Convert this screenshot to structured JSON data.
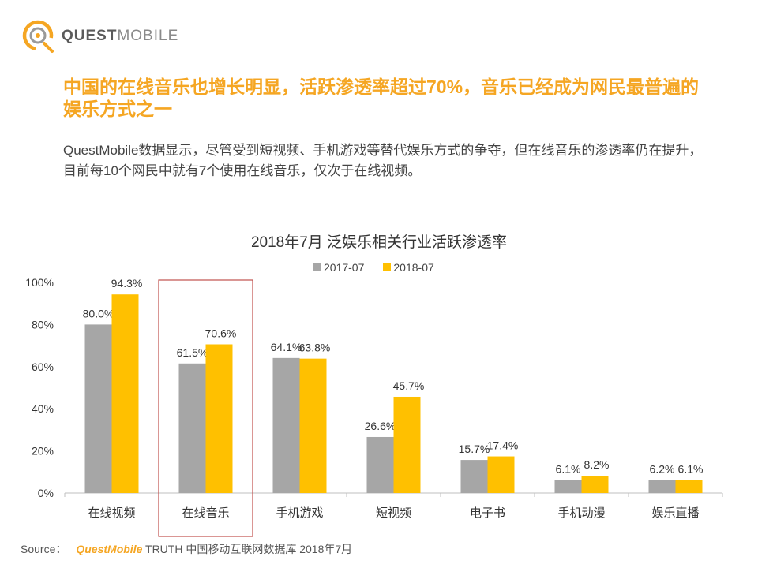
{
  "logo": {
    "brand_bold": "QUEST",
    "brand_light": "MOBILE"
  },
  "headline": "中国的在线音乐也增长明显，活跃渗透率超过70%，音乐已经成为网民最普遍的娱乐方式之一",
  "summary": "QuestMobile数据显示，尽管受到短视频、手机游戏等替代娱乐方式的争夺，但在线音乐的渗透率仍在提升，目前每10个网民中就有7个使用在线音乐，仅次于在线视频。",
  "source": {
    "label": "Source：",
    "brand": "QuestMobile",
    "text": "TRUTH 中国移动互联网数据库 2018年7月"
  },
  "colors": {
    "series_2017": "#a6a6a6",
    "series_2018": "#ffc000",
    "accent": "#f5a623",
    "highlight_box": "#c0504d"
  },
  "chart_data": {
    "type": "bar",
    "title": "2018年7月 泛娱乐相关行业活跃渗透率",
    "categories": [
      "在线视频",
      "在线音乐",
      "手机游戏",
      "短视频",
      "电子书",
      "手机动漫",
      "娱乐直播"
    ],
    "series": [
      {
        "name": "2017-07",
        "values": [
          80.0,
          61.5,
          64.1,
          26.6,
          15.7,
          6.1,
          6.2
        ],
        "labels": [
          "80.0%",
          "61.5%",
          "64.1%",
          "26.6%",
          "15.7%",
          "6.1%",
          "6.2%"
        ]
      },
      {
        "name": "2018-07",
        "values": [
          94.3,
          70.6,
          63.8,
          45.7,
          17.4,
          8.2,
          6.1
        ],
        "labels": [
          "94.3%",
          "70.6%",
          "63.8%",
          "45.7%",
          "17.4%",
          "8.2%",
          "6.1%"
        ]
      }
    ],
    "ylim": [
      0,
      100
    ],
    "yticks": [
      "0%",
      "20%",
      "40%",
      "60%",
      "80%",
      "100%"
    ],
    "highlighted_category": "在线音乐",
    "legend_position": "top",
    "grid": false
  }
}
